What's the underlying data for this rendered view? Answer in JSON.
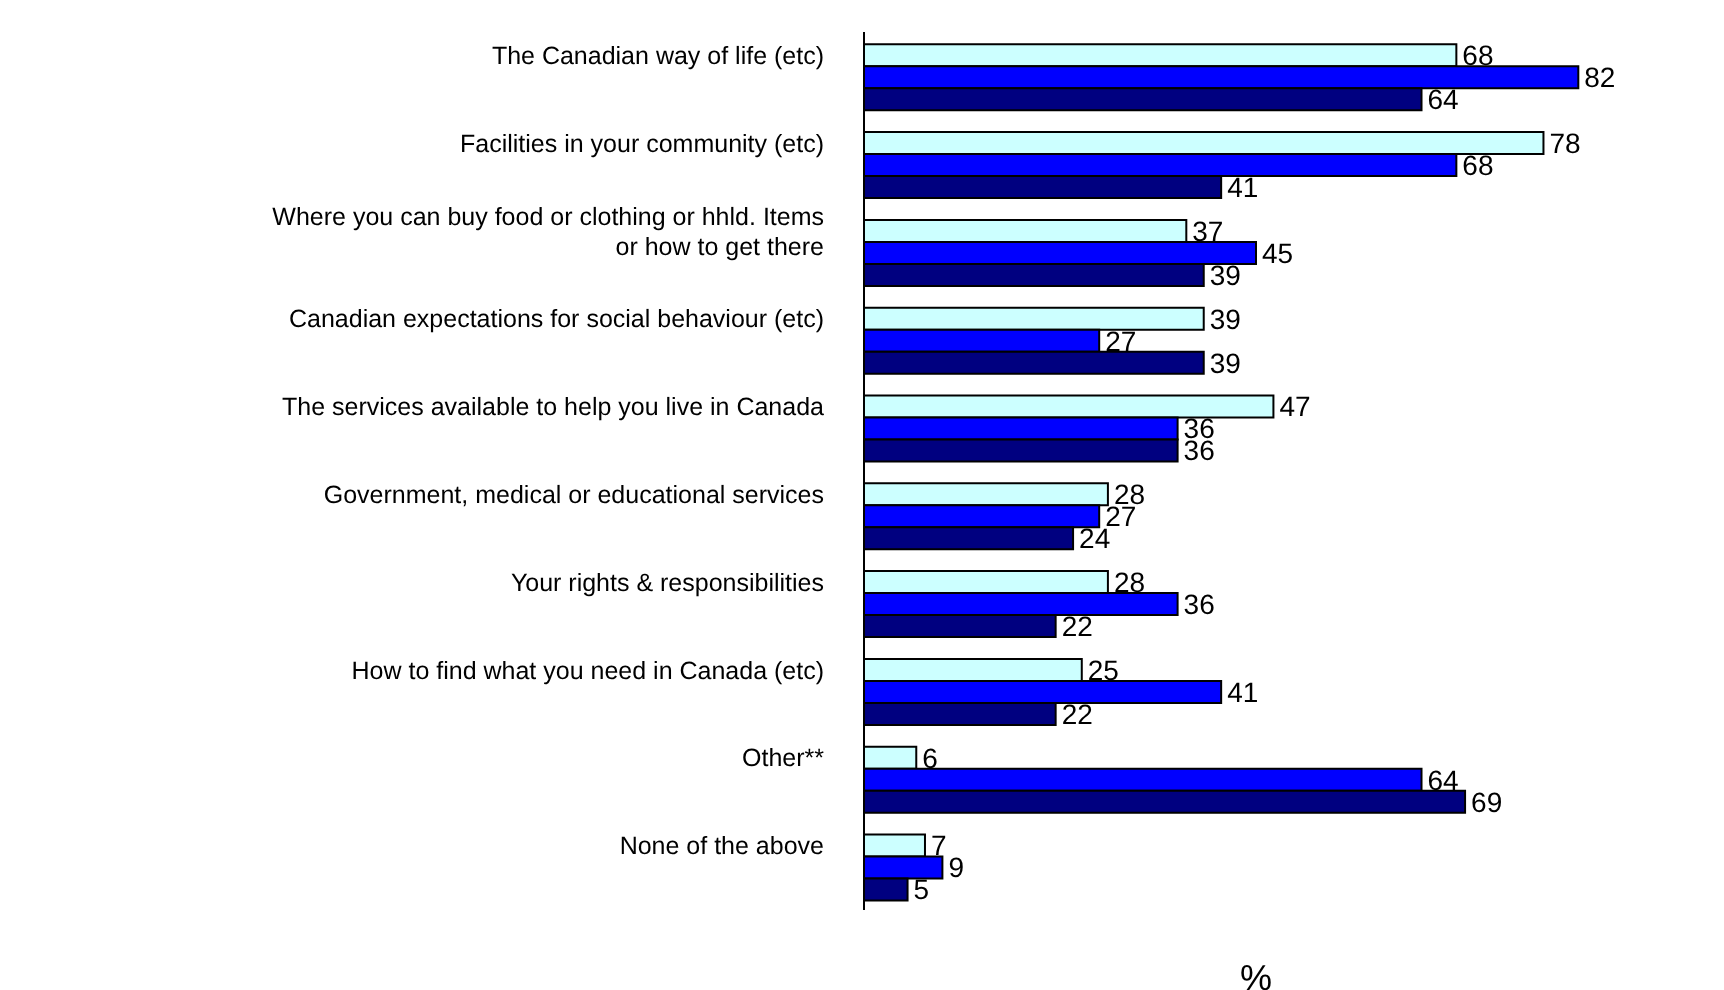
{
  "chart_data": {
    "type": "bar",
    "orientation": "horizontal",
    "xlabel": "%",
    "categories": [
      "The Canadian way of life (etc)",
      "Facilities in your community (etc)",
      "Where you can buy food or clothing or hhld. Items or how to get there",
      "Canadian expectations for social behaviour (etc)",
      "The services available to help you live in Canada",
      "Government, medical or educational services",
      "Your rights & responsibilities",
      "How to find what you need in Canada (etc)",
      "Other**",
      "None of the above"
    ],
    "series": [
      {
        "color": "#ccffff",
        "values": [
          68,
          78,
          37,
          39,
          47,
          28,
          28,
          25,
          6,
          7
        ]
      },
      {
        "color": "#0000ff",
        "values": [
          82,
          68,
          45,
          27,
          36,
          27,
          36,
          41,
          64,
          9
        ]
      },
      {
        "color": "#000080",
        "values": [
          64,
          41,
          39,
          39,
          36,
          24,
          22,
          22,
          69,
          5
        ]
      }
    ],
    "data_labels": true,
    "grid": false,
    "legend": false
  }
}
